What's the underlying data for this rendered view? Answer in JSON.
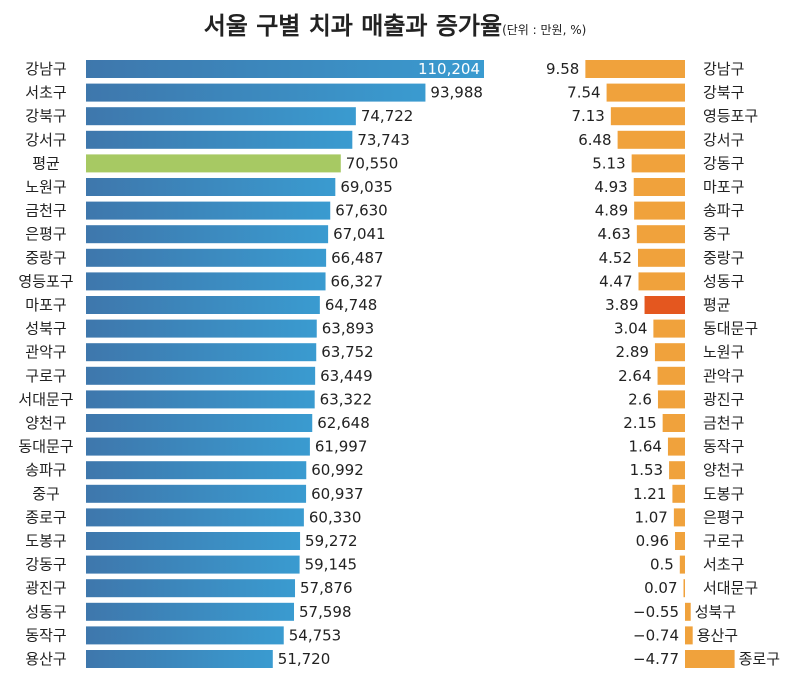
{
  "title": "서울 구별 치과 매출과 증가율",
  "unit_note": "(단위 : 만원, %)",
  "colors": {
    "revenue_bar": "#3e77ac",
    "revenue_bar_light": "#3a9bd0",
    "average_bar": "#a7c963",
    "growth_bar": "#f0a23c",
    "growth_average_bar": "#e4571f"
  },
  "chart_data": [
    {
      "type": "bar",
      "orientation": "horizontal",
      "title": "매출",
      "highlight_category": "평균",
      "categories": [
        "강남구",
        "서초구",
        "강북구",
        "강서구",
        "평균",
        "노원구",
        "금천구",
        "은평구",
        "중랑구",
        "영등포구",
        "마포구",
        "성북구",
        "관악구",
        "구로구",
        "서대문구",
        "양천구",
        "동대문구",
        "송파구",
        "중구",
        "종로구",
        "도봉구",
        "강동구",
        "광진구",
        "성동구",
        "동작구",
        "용산구"
      ],
      "values": [
        110204,
        93988,
        74722,
        73743,
        70550,
        69035,
        67630,
        67041,
        66487,
        66327,
        64748,
        63893,
        63752,
        63449,
        63322,
        62648,
        61997,
        60992,
        60937,
        60330,
        59272,
        59145,
        57876,
        57598,
        54753,
        51720
      ],
      "value_labels": [
        "110,204",
        "93,988",
        "74,722",
        "73,743",
        "70,550",
        "69,035",
        "67,630",
        "67,041",
        "66,487",
        "66,327",
        "64,748",
        "63,893",
        "63,752",
        "63,449",
        "63,322",
        "62,648",
        "61,997",
        "60,992",
        "60,937",
        "60,330",
        "59,272",
        "59,145",
        "57,876",
        "57,598",
        "54,753",
        "51,720"
      ]
    },
    {
      "type": "bar",
      "orientation": "horizontal",
      "title": "증가율",
      "highlight_category": "평균",
      "categories": [
        "강남구",
        "강북구",
        "영등포구",
        "강서구",
        "강동구",
        "마포구",
        "송파구",
        "중구",
        "중랑구",
        "성동구",
        "평균",
        "동대문구",
        "노원구",
        "관악구",
        "광진구",
        "금천구",
        "동작구",
        "양천구",
        "도봉구",
        "은평구",
        "구로구",
        "서초구",
        "서대문구",
        "성북구",
        "용산구",
        "종로구"
      ],
      "values": [
        9.58,
        7.54,
        7.13,
        6.48,
        5.13,
        4.93,
        4.89,
        4.63,
        4.52,
        4.47,
        3.89,
        3.04,
        2.89,
        2.64,
        2.6,
        2.15,
        1.64,
        1.53,
        1.21,
        1.07,
        0.96,
        0.5,
        0.07,
        -0.55,
        -0.74,
        -4.77
      ],
      "value_labels": [
        "9.58",
        "7.54",
        "7.13",
        "6.48",
        "5.13",
        "4.93",
        "4.89",
        "4.63",
        "4.52",
        "4.47",
        "3.89",
        "3.04",
        "2.89",
        "2.64",
        "2.6",
        "2.15",
        "1.64",
        "1.53",
        "1.21",
        "1.07",
        "0.96",
        "0.5",
        "0.07",
        "−0.55",
        "−0.74",
        "−4.77"
      ]
    }
  ]
}
